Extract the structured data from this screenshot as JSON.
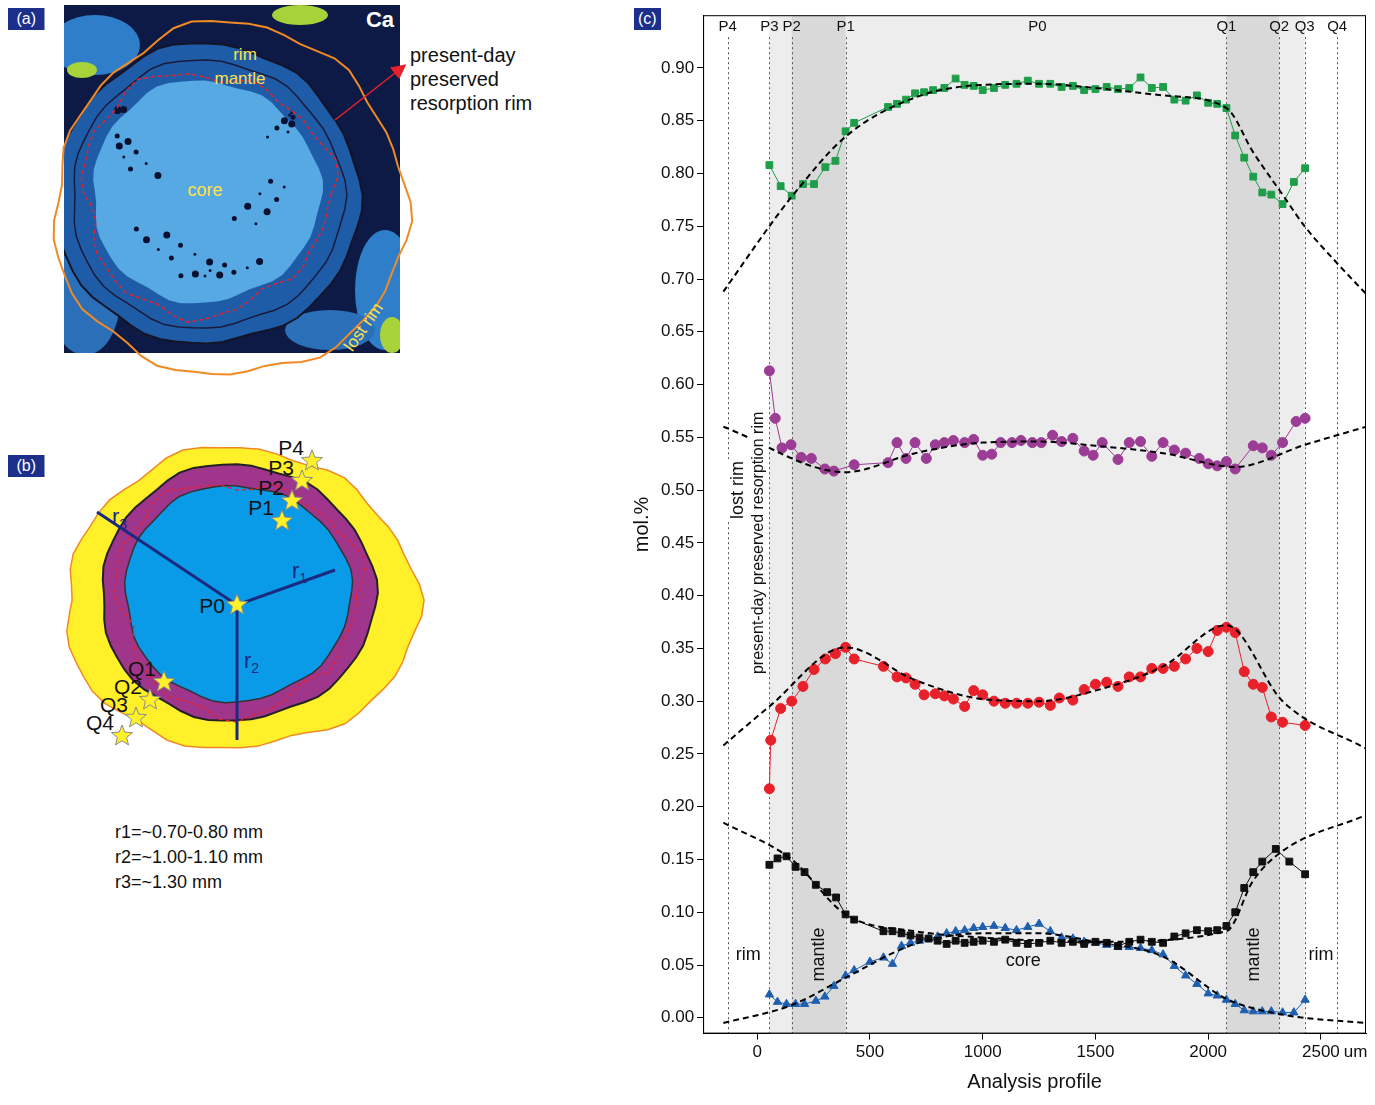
{
  "panel_a": {
    "letter": "(a)",
    "element": "Ca",
    "labels": {
      "rim": "rim",
      "mantle": "mantle",
      "core": "core",
      "lost_rim": "lost rim"
    },
    "annotation": "present-day preserved resorption rim"
  },
  "panel_b": {
    "letter": "(b)",
    "center": "P0",
    "profile_p": [
      "P1",
      "P2",
      "P3",
      "P4"
    ],
    "profile_q": [
      "Q1",
      "Q2",
      "Q3",
      "Q4"
    ],
    "radii": [
      "r1",
      "r2",
      "r3"
    ],
    "notes": [
      "r1=~0.70-0.80 mm",
      "r2=~1.00-1.10 mm",
      "r3=~1.30 mm"
    ]
  },
  "chart_data": {
    "type": "scatter",
    "panel_label": "(c)",
    "x_label": "Analysis profile",
    "x_unit_label": "um",
    "y_label": "mol.%",
    "xlim": [
      -240,
      2700
    ],
    "xticks": [
      0,
      500,
      1000,
      1500,
      2000,
      2500
    ],
    "ylim": [
      -0.015,
      0.95
    ],
    "yticks": [
      {
        "value": 0,
        "label": "0.00"
      },
      {
        "value": 0.05,
        "label": "0.05"
      },
      {
        "value": 0.1,
        "label": "0.10"
      },
      {
        "value": 0.15,
        "label": "0.15"
      },
      {
        "value": 0.2,
        "label": "0.20"
      },
      {
        "value": 0.25,
        "label": "0.25"
      },
      {
        "value": 0.3,
        "label": "0.30"
      },
      {
        "value": 0.35,
        "label": "0.35"
      },
      {
        "value": 0.4,
        "label": "0.40"
      },
      {
        "value": 0.45,
        "label": "0.45"
      },
      {
        "value": 0.5,
        "label": "0.50"
      },
      {
        "value": 0.55,
        "label": "0.55"
      },
      {
        "value": 0.6,
        "label": "0.60"
      },
      {
        "value": 0.65,
        "label": "0.65"
      },
      {
        "value": 0.7,
        "label": "0.70"
      },
      {
        "value": 0.75,
        "label": "0.75"
      },
      {
        "value": 0.8,
        "label": "0.80"
      },
      {
        "value": 0.85,
        "label": "0.85"
      },
      {
        "value": 0.9,
        "label": "0.90"
      }
    ],
    "grid": false,
    "zones": [
      {
        "from": 54,
        "to": 2428,
        "color": "#ededed"
      },
      {
        "from": 153,
        "to": 392,
        "color": "#d9d9d9"
      },
      {
        "from": 2081,
        "to": 2315,
        "color": "#d9d9d9"
      }
    ],
    "profile_points": [
      {
        "label": "P4",
        "x": -131,
        "line": true
      },
      {
        "label": "P3",
        "x": 54,
        "line": true
      },
      {
        "label": "P2",
        "x": 153,
        "line": true
      },
      {
        "label": "P1",
        "x": 392,
        "line": true
      },
      {
        "label": "P0",
        "x": 1243,
        "line": false
      },
      {
        "label": "Q1",
        "x": 2081,
        "line": true
      },
      {
        "label": "Q2",
        "x": 2315,
        "line": true
      },
      {
        "label": "Q3",
        "x": 2428,
        "line": true
      },
      {
        "label": "Q4",
        "x": 2572,
        "line": true
      }
    ],
    "annotations": [
      {
        "text": "lost rim",
        "x": -90,
        "y": 0.5,
        "vertical": true
      },
      {
        "text": "present-day preserved resorption rim",
        "x": 0,
        "y": 0.45,
        "vertical": true
      },
      {
        "text": "rim",
        "x": -40,
        "y": 0.06,
        "vertical": false
      },
      {
        "text": "mantle",
        "x": 270,
        "y": 0.06,
        "vertical": true
      },
      {
        "text": "core",
        "x": 1180,
        "y": 0.055,
        "vertical": false
      },
      {
        "text": "mantle",
        "x": 2200,
        "y": 0.06,
        "vertical": true
      },
      {
        "text": "rim",
        "x": 2500,
        "y": 0.06,
        "vertical": false
      }
    ],
    "series": [
      {
        "color": "#1f9e4a",
        "marker": "square",
        "line_style": "solid",
        "x": [
          54,
          104,
          153,
          203,
          252,
          302,
          347,
          392,
          430,
          580,
          620,
          660,
          700,
          740,
          780,
          830,
          880,
          920,
          960,
          1000,
          1050,
          1100,
          1150,
          1200,
          1250,
          1300,
          1350,
          1400,
          1450,
          1500,
          1550,
          1600,
          1650,
          1700,
          1750,
          1800,
          1850,
          1900,
          1950,
          2000,
          2040,
          2081,
          2120,
          2160,
          2200,
          2240,
          2280,
          2330,
          2380,
          2430
        ],
        "values": [
          0.808,
          0.788,
          0.779,
          0.79,
          0.79,
          0.806,
          0.812,
          0.84,
          0.848,
          0.863,
          0.866,
          0.87,
          0.876,
          0.877,
          0.879,
          0.881,
          0.89,
          0.884,
          0.883,
          0.879,
          0.881,
          0.884,
          0.885,
          0.888,
          0.885,
          0.885,
          0.882,
          0.883,
          0.879,
          0.88,
          0.882,
          0.88,
          0.881,
          0.891,
          0.881,
          0.882,
          0.87,
          0.869,
          0.874,
          0.867,
          0.866,
          0.862,
          0.836,
          0.815,
          0.797,
          0.782,
          0.78,
          0.771,
          0.792,
          0.805
        ]
      },
      {
        "color": "#9b3d95",
        "marker": "circle",
        "line_style": "solid",
        "x": [
          54,
          80,
          110,
          150,
          195,
          240,
          300,
          340,
          430,
          580,
          620,
          660,
          700,
          750,
          790,
          830,
          870,
          920,
          960,
          1000,
          1040,
          1080,
          1130,
          1170,
          1220,
          1260,
          1310,
          1350,
          1400,
          1450,
          1490,
          1530,
          1600,
          1650,
          1700,
          1750,
          1800,
          1850,
          1900,
          1960,
          2000,
          2040,
          2081,
          2120,
          2200,
          2240,
          2280,
          2330,
          2390,
          2430
        ],
        "values": [
          0.613,
          0.568,
          0.54,
          0.543,
          0.531,
          0.53,
          0.52,
          0.518,
          0.524,
          0.526,
          0.545,
          0.53,
          0.545,
          0.53,
          0.543,
          0.545,
          0.547,
          0.545,
          0.548,
          0.533,
          0.534,
          0.545,
          0.545,
          0.547,
          0.545,
          0.545,
          0.552,
          0.546,
          0.549,
          0.537,
          0.533,
          0.545,
          0.529,
          0.545,
          0.546,
          0.532,
          0.545,
          0.538,
          0.535,
          0.53,
          0.525,
          0.523,
          0.527,
          0.52,
          0.542,
          0.54,
          0.533,
          0.545,
          0.565,
          0.568
        ]
      },
      {
        "color": "#e8202a",
        "marker": "circle",
        "line_style": "solid",
        "x": [
          54,
          60,
          104,
          153,
          203,
          252,
          302,
          347,
          392,
          430,
          560,
          620,
          660,
          700,
          740,
          790,
          830,
          870,
          920,
          960,
          1000,
          1050,
          1100,
          1150,
          1200,
          1250,
          1300,
          1340,
          1400,
          1450,
          1500,
          1550,
          1600,
          1650,
          1700,
          1750,
          1800,
          1850,
          1900,
          1950,
          2000,
          2040,
          2081,
          2120,
          2160,
          2200,
          2240,
          2280,
          2330,
          2430
        ],
        "values": [
          0.217,
          0.263,
          0.293,
          0.3,
          0.314,
          0.33,
          0.34,
          0.345,
          0.351,
          0.34,
          0.333,
          0.323,
          0.322,
          0.316,
          0.306,
          0.307,
          0.305,
          0.302,
          0.295,
          0.31,
          0.306,
          0.3,
          0.298,
          0.298,
          0.298,
          0.299,
          0.296,
          0.303,
          0.301,
          0.311,
          0.316,
          0.318,
          0.314,
          0.323,
          0.323,
          0.331,
          0.331,
          0.333,
          0.34,
          0.35,
          0.347,
          0.367,
          0.37,
          0.365,
          0.328,
          0.316,
          0.313,
          0.285,
          0.28,
          0.277
        ]
      },
      {
        "color": "#111111",
        "marker": "square",
        "line_style": "solid",
        "x": [
          54,
          90,
          130,
          170,
          210,
          260,
          310,
          350,
          392,
          430,
          560,
          600,
          640,
          680,
          720,
          760,
          800,
          840,
          880,
          920,
          960,
          1000,
          1050,
          1100,
          1150,
          1200,
          1250,
          1300,
          1350,
          1400,
          1450,
          1500,
          1550,
          1600,
          1650,
          1700,
          1750,
          1800,
          1850,
          1900,
          1950,
          2000,
          2040,
          2081,
          2120,
          2160,
          2200,
          2240,
          2300,
          2360,
          2430
        ],
        "values": [
          0.145,
          0.151,
          0.153,
          0.143,
          0.138,
          0.126,
          0.119,
          0.114,
          0.098,
          0.093,
          0.082,
          0.082,
          0.08,
          0.078,
          0.076,
          0.075,
          0.073,
          0.07,
          0.073,
          0.071,
          0.072,
          0.073,
          0.072,
          0.074,
          0.071,
          0.07,
          0.071,
          0.073,
          0.071,
          0.072,
          0.07,
          0.072,
          0.071,
          0.068,
          0.072,
          0.074,
          0.072,
          0.071,
          0.077,
          0.08,
          0.083,
          0.082,
          0.083,
          0.087,
          0.1,
          0.123,
          0.138,
          0.148,
          0.16,
          0.148,
          0.136
        ]
      },
      {
        "color": "#1f5fb0",
        "marker": "triangle",
        "line_style": "solid",
        "x": [
          54,
          90,
          130,
          170,
          210,
          260,
          300,
          340,
          392,
          430,
          500,
          560,
          600,
          640,
          680,
          720,
          760,
          800,
          840,
          880,
          920,
          960,
          1000,
          1050,
          1100,
          1150,
          1200,
          1250,
          1300,
          1350,
          1400,
          1450,
          1500,
          1550,
          1600,
          1650,
          1700,
          1750,
          1800,
          1850,
          1900,
          1950,
          2000,
          2040,
          2081,
          2120,
          2160,
          2200,
          2240,
          2280,
          2330,
          2380,
          2430
        ],
        "values": [
          0.022,
          0.015,
          0.013,
          0.013,
          0.013,
          0.016,
          0.02,
          0.03,
          0.04,
          0.045,
          0.053,
          0.057,
          0.051,
          0.068,
          0.071,
          0.073,
          0.075,
          0.077,
          0.08,
          0.082,
          0.083,
          0.085,
          0.086,
          0.087,
          0.085,
          0.083,
          0.086,
          0.089,
          0.082,
          0.076,
          0.075,
          0.072,
          0.071,
          0.069,
          0.067,
          0.067,
          0.066,
          0.064,
          0.06,
          0.049,
          0.04,
          0.032,
          0.023,
          0.021,
          0.017,
          0.013,
          0.007,
          0.006,
          0.006,
          0.006,
          0.005,
          0.005,
          0.017
        ]
      },
      {
        "color": "#000000",
        "marker": "none",
        "line_style": "dashed",
        "x": [
          -150,
          54,
          153,
          392,
          700,
          1000,
          1250,
          1500,
          1800,
          2081,
          2200,
          2330,
          2428,
          2572,
          2700
        ],
        "values": [
          0.688,
          0.75,
          0.778,
          0.835,
          0.872,
          0.884,
          0.885,
          0.881,
          0.874,
          0.862,
          0.82,
          0.78,
          0.75,
          0.715,
          0.686
        ]
      },
      {
        "color": "#000000",
        "marker": "none",
        "line_style": "dashed",
        "x": [
          -150,
          392,
          700,
          1000,
          1250,
          1500,
          1800,
          2120,
          2430,
          2700
        ],
        "values": [
          0.56,
          0.517,
          0.535,
          0.545,
          0.546,
          0.542,
          0.535,
          0.522,
          0.543,
          0.56
        ]
      },
      {
        "color": "#000000",
        "marker": "none",
        "line_style": "dashed",
        "x": [
          -150,
          54,
          392,
          700,
          1000,
          1250,
          1500,
          1800,
          2081,
          2330,
          2700
        ],
        "values": [
          0.258,
          0.295,
          0.351,
          0.32,
          0.302,
          0.3,
          0.31,
          0.333,
          0.372,
          0.3,
          0.255
        ]
      },
      {
        "color": "#000000",
        "marker": "none",
        "line_style": "dashed",
        "x": [
          -150,
          153,
          392,
          700,
          1000,
          1500,
          2081,
          2200,
          2330,
          2700
        ],
        "values": [
          0.185,
          0.15,
          0.098,
          0.082,
          0.076,
          0.072,
          0.082,
          0.13,
          0.158,
          0.192
        ]
      },
      {
        "color": "#000000",
        "marker": "none",
        "line_style": "dashed",
        "x": [
          -150,
          153,
          392,
          700,
          1000,
          1250,
          1500,
          1800,
          2081,
          2330,
          2700
        ],
        "values": [
          -0.005,
          0.012,
          0.038,
          0.07,
          0.08,
          0.08,
          0.072,
          0.058,
          0.018,
          0.003,
          -0.005
        ]
      }
    ]
  }
}
